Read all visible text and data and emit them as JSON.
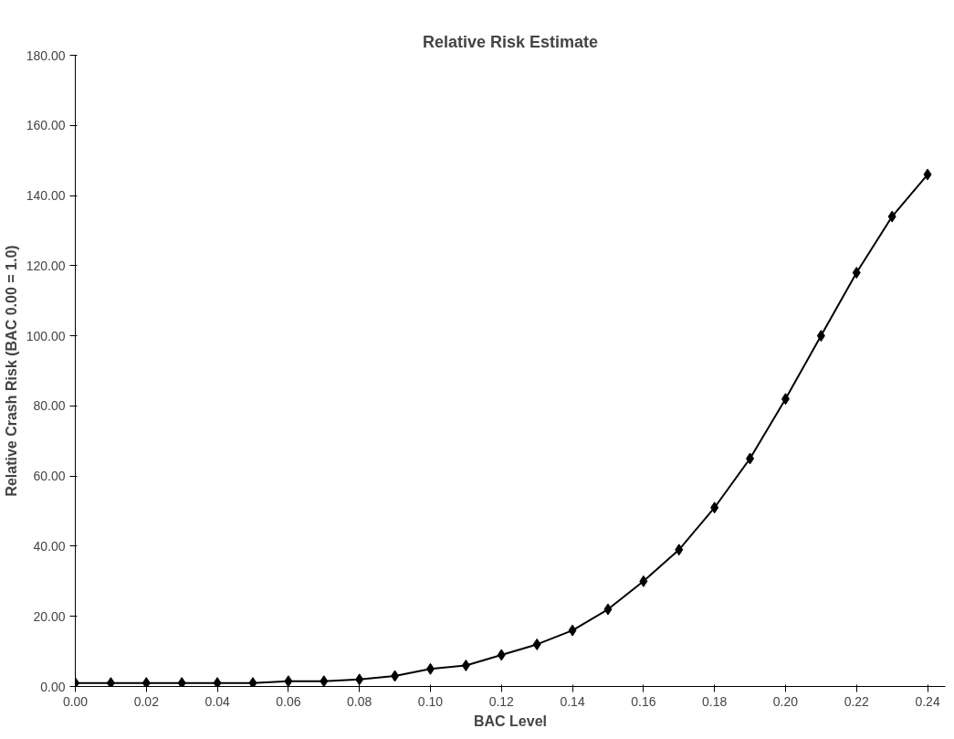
{
  "chart_data": {
    "type": "line",
    "title": "Relative Risk Estimate",
    "xlabel": "BAC Level",
    "ylabel": "Relative Crash Risk (BAC 0.00 = 1.0)",
    "x": [
      0.0,
      0.01,
      0.02,
      0.03,
      0.04,
      0.05,
      0.06,
      0.07,
      0.08,
      0.09,
      0.1,
      0.11,
      0.12,
      0.13,
      0.14,
      0.15,
      0.16,
      0.17,
      0.18,
      0.19,
      0.2,
      0.21,
      0.22,
      0.23,
      0.24
    ],
    "series": [
      {
        "color": "#000000",
        "values": [
          1,
          1,
          1,
          1,
          1,
          1,
          1.5,
          1.5,
          2,
          3,
          5,
          6,
          9,
          12,
          16,
          22,
          30,
          39,
          51,
          65,
          82,
          100,
          118,
          134,
          146
        ]
      }
    ],
    "xlim": [
      0,
      0.245
    ],
    "ylim": [
      0,
      180
    ],
    "xticks": [
      {
        "value": 0,
        "label": "0.00"
      },
      {
        "value": 0.02,
        "label": "0.02"
      },
      {
        "value": 0.04,
        "label": "0.04"
      },
      {
        "value": 0.06,
        "label": "0.06"
      },
      {
        "value": 0.08,
        "label": "0.08"
      },
      {
        "value": 0.1,
        "label": "0.10"
      },
      {
        "value": 0.12,
        "label": "0.12"
      },
      {
        "value": 0.14,
        "label": "0.14"
      },
      {
        "value": 0.16,
        "label": "0.16"
      },
      {
        "value": 0.18,
        "label": "0.18"
      },
      {
        "value": 0.2,
        "label": "0.20"
      },
      {
        "value": 0.22,
        "label": "0.22"
      },
      {
        "value": 0.24,
        "label": "0.24"
      }
    ],
    "yticks": [
      {
        "value": 0,
        "label": "0.00"
      },
      {
        "value": 20,
        "label": "20.00"
      },
      {
        "value": 40,
        "label": "40.00"
      },
      {
        "value": 60,
        "label": "60.00"
      },
      {
        "value": 80,
        "label": "80.00"
      },
      {
        "value": 100,
        "label": "100.00"
      },
      {
        "value": 120,
        "label": "120.00"
      },
      {
        "value": 140,
        "label": "140.00"
      },
      {
        "value": 160,
        "label": "160.00"
      },
      {
        "value": 180,
        "label": "180.00"
      }
    ],
    "grid": false,
    "marker": "diamond",
    "line_style": "solid"
  }
}
